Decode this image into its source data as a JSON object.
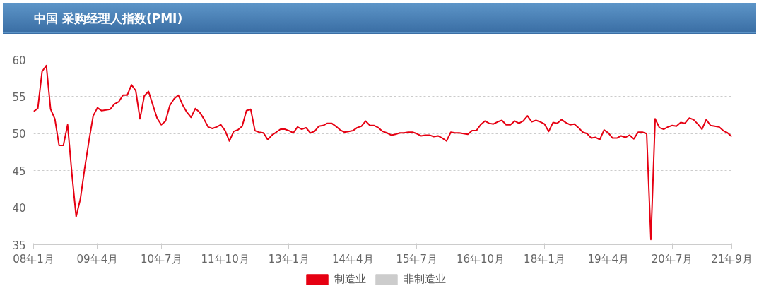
{
  "chart_data": {
    "type": "line",
    "title": "中国 采购经理人指数(PMI)",
    "x": [
      "2008-01",
      "2008-02",
      "2008-03",
      "2008-04",
      "2008-05",
      "2008-06",
      "2008-07",
      "2008-08",
      "2008-09",
      "2008-10",
      "2008-11",
      "2008-12",
      "2009-01",
      "2009-02",
      "2009-03",
      "2009-04",
      "2009-05",
      "2009-06",
      "2009-07",
      "2009-08",
      "2009-09",
      "2009-10",
      "2009-11",
      "2009-12",
      "2010-01",
      "2010-02",
      "2010-03",
      "2010-04",
      "2010-05",
      "2010-06",
      "2010-07",
      "2010-08",
      "2010-09",
      "2010-10",
      "2010-11",
      "2010-12",
      "2011-01",
      "2011-02",
      "2011-03",
      "2011-04",
      "2011-05",
      "2011-06",
      "2011-07",
      "2011-08",
      "2011-09",
      "2011-10",
      "2011-11",
      "2011-12",
      "2012-01",
      "2012-02",
      "2012-03",
      "2012-04",
      "2012-05",
      "2012-06",
      "2012-07",
      "2012-08",
      "2012-09",
      "2012-10",
      "2012-11",
      "2012-12",
      "2013-01",
      "2013-02",
      "2013-03",
      "2013-04",
      "2013-05",
      "2013-06",
      "2013-07",
      "2013-08",
      "2013-09",
      "2013-10",
      "2013-11",
      "2013-12",
      "2014-01",
      "2014-02",
      "2014-03",
      "2014-04",
      "2014-05",
      "2014-06",
      "2014-07",
      "2014-08",
      "2014-09",
      "2014-10",
      "2014-11",
      "2014-12",
      "2015-01",
      "2015-02",
      "2015-03",
      "2015-04",
      "2015-05",
      "2015-06",
      "2015-07",
      "2015-08",
      "2015-09",
      "2015-10",
      "2015-11",
      "2015-12",
      "2016-01",
      "2016-02",
      "2016-03",
      "2016-04",
      "2016-05",
      "2016-06",
      "2016-07",
      "2016-08",
      "2016-09",
      "2016-10",
      "2016-11",
      "2016-12",
      "2017-01",
      "2017-02",
      "2017-03",
      "2017-04",
      "2017-05",
      "2017-06",
      "2017-07",
      "2017-08",
      "2017-09",
      "2017-10",
      "2017-11",
      "2017-12",
      "2018-01",
      "2018-02",
      "2018-03",
      "2018-04",
      "2018-05",
      "2018-06",
      "2018-07",
      "2018-08",
      "2018-09",
      "2018-10",
      "2018-11",
      "2018-12",
      "2019-01",
      "2019-02",
      "2019-03",
      "2019-04",
      "2019-05",
      "2019-06",
      "2019-07",
      "2019-08",
      "2019-09",
      "2019-10",
      "2019-11",
      "2019-12",
      "2020-01",
      "2020-02",
      "2020-03",
      "2020-04",
      "2020-05",
      "2020-06",
      "2020-07",
      "2020-08",
      "2020-09",
      "2020-10",
      "2020-11",
      "2020-12",
      "2021-01",
      "2021-02",
      "2021-03",
      "2021-04",
      "2021-05",
      "2021-06",
      "2021-07",
      "2021-08",
      "2021-09"
    ],
    "series": [
      {
        "name": "制造业",
        "color": "#e60012",
        "values": [
          53.0,
          53.4,
          58.4,
          59.2,
          53.3,
          52.0,
          48.4,
          48.4,
          51.2,
          44.6,
          38.8,
          41.2,
          45.3,
          49.0,
          52.4,
          53.5,
          53.1,
          53.2,
          53.3,
          54.0,
          54.3,
          55.2,
          55.2,
          56.6,
          55.8,
          52.0,
          55.1,
          55.7,
          53.9,
          52.1,
          51.2,
          51.7,
          53.8,
          54.7,
          55.2,
          53.9,
          52.9,
          52.2,
          53.4,
          52.9,
          52.0,
          50.9,
          50.7,
          50.9,
          51.2,
          50.4,
          49.0,
          50.3,
          50.5,
          51.0,
          53.1,
          53.3,
          50.4,
          50.2,
          50.1,
          49.2,
          49.8,
          50.2,
          50.6,
          50.6,
          50.4,
          50.1,
          50.9,
          50.6,
          50.8,
          50.1,
          50.3,
          51.0,
          51.1,
          51.4,
          51.4,
          51.0,
          50.5,
          50.2,
          50.3,
          50.4,
          50.8,
          51.0,
          51.7,
          51.1,
          51.1,
          50.8,
          50.3,
          50.1,
          49.8,
          49.9,
          50.1,
          50.1,
          50.2,
          50.2,
          50.0,
          49.7,
          49.8,
          49.8,
          49.6,
          49.7,
          49.4,
          49.0,
          50.2,
          50.1,
          50.1,
          50.0,
          49.9,
          50.4,
          50.4,
          51.2,
          51.7,
          51.4,
          51.3,
          51.6,
          51.8,
          51.2,
          51.2,
          51.7,
          51.4,
          51.7,
          52.4,
          51.6,
          51.8,
          51.6,
          51.3,
          50.3,
          51.5,
          51.4,
          51.9,
          51.5,
          51.2,
          51.3,
          50.8,
          50.2,
          50.0,
          49.4,
          49.5,
          49.2,
          50.5,
          50.1,
          49.4,
          49.4,
          49.7,
          49.5,
          49.8,
          49.3,
          50.2,
          50.2,
          50.0,
          35.7,
          52.0,
          50.8,
          50.6,
          50.9,
          51.1,
          51.0,
          51.5,
          51.4,
          52.1,
          51.9,
          51.3,
          50.6,
          51.9,
          51.1,
          51.0,
          50.9,
          50.4,
          50.1,
          49.6
        ]
      },
      {
        "name": "非制造业",
        "color": "#cccccc",
        "values": [
          null,
          null,
          null,
          null,
          null,
          null,
          null,
          null,
          null,
          null,
          null,
          null,
          null,
          null,
          null,
          null,
          null,
          null,
          null,
          null,
          null,
          null,
          null,
          null,
          null,
          null,
          null,
          null,
          null,
          null,
          null,
          null,
          null,
          null,
          null,
          null,
          null,
          null,
          null,
          null,
          null,
          null,
          null,
          null,
          null,
          null,
          null,
          null,
          null,
          null,
          null,
          null,
          null,
          null,
          null,
          null,
          null,
          null,
          null,
          null,
          null,
          null,
          null,
          null,
          null,
          null,
          null,
          null,
          null,
          null,
          null,
          null,
          null,
          null,
          null,
          null,
          null,
          null,
          null,
          null,
          null,
          null,
          null,
          null,
          null,
          null,
          null,
          null,
          null,
          null,
          null,
          null,
          null,
          null,
          null,
          null,
          null,
          null,
          null,
          null,
          null,
          null,
          null,
          null,
          null,
          null,
          null,
          null,
          null,
          null,
          null,
          null,
          null,
          null,
          null,
          null,
          null,
          null,
          null,
          null,
          null,
          null,
          null,
          null,
          null,
          null,
          null,
          null,
          null,
          null,
          null,
          null,
          null,
          null,
          null,
          null,
          null,
          null,
          null,
          null,
          null,
          null,
          null,
          null,
          null,
          null,
          null,
          null,
          null,
          null,
          null,
          null,
          null,
          null,
          null,
          null,
          null,
          null,
          null,
          null,
          null,
          null,
          null,
          null,
          null
        ]
      }
    ],
    "xlim": [
      "2008-01",
      "2021-09"
    ],
    "xticks": [
      {
        "value": "2008-01",
        "label": "08年1月"
      },
      {
        "value": "2009-04",
        "label": "09年4月"
      },
      {
        "value": "2010-07",
        "label": "10年7月"
      },
      {
        "value": "2011-10",
        "label": "11年10月"
      },
      {
        "value": "2013-01",
        "label": "13年1月"
      },
      {
        "value": "2014-04",
        "label": "14年4月"
      },
      {
        "value": "2015-07",
        "label": "15年7月"
      },
      {
        "value": "2016-10",
        "label": "16年10月"
      },
      {
        "value": "2018-01",
        "label": "18年1月"
      },
      {
        "value": "2019-04",
        "label": "19年4月"
      },
      {
        "value": "2020-07",
        "label": "20年7月"
      },
      {
        "value": "2021-09",
        "label": "21年9月"
      }
    ],
    "ylim": [
      35,
      60
    ],
    "yticks": [
      35,
      40,
      45,
      50,
      55,
      60
    ],
    "grid": "y",
    "legend": "bottom",
    "marker": "none",
    "line_style": "solid"
  }
}
